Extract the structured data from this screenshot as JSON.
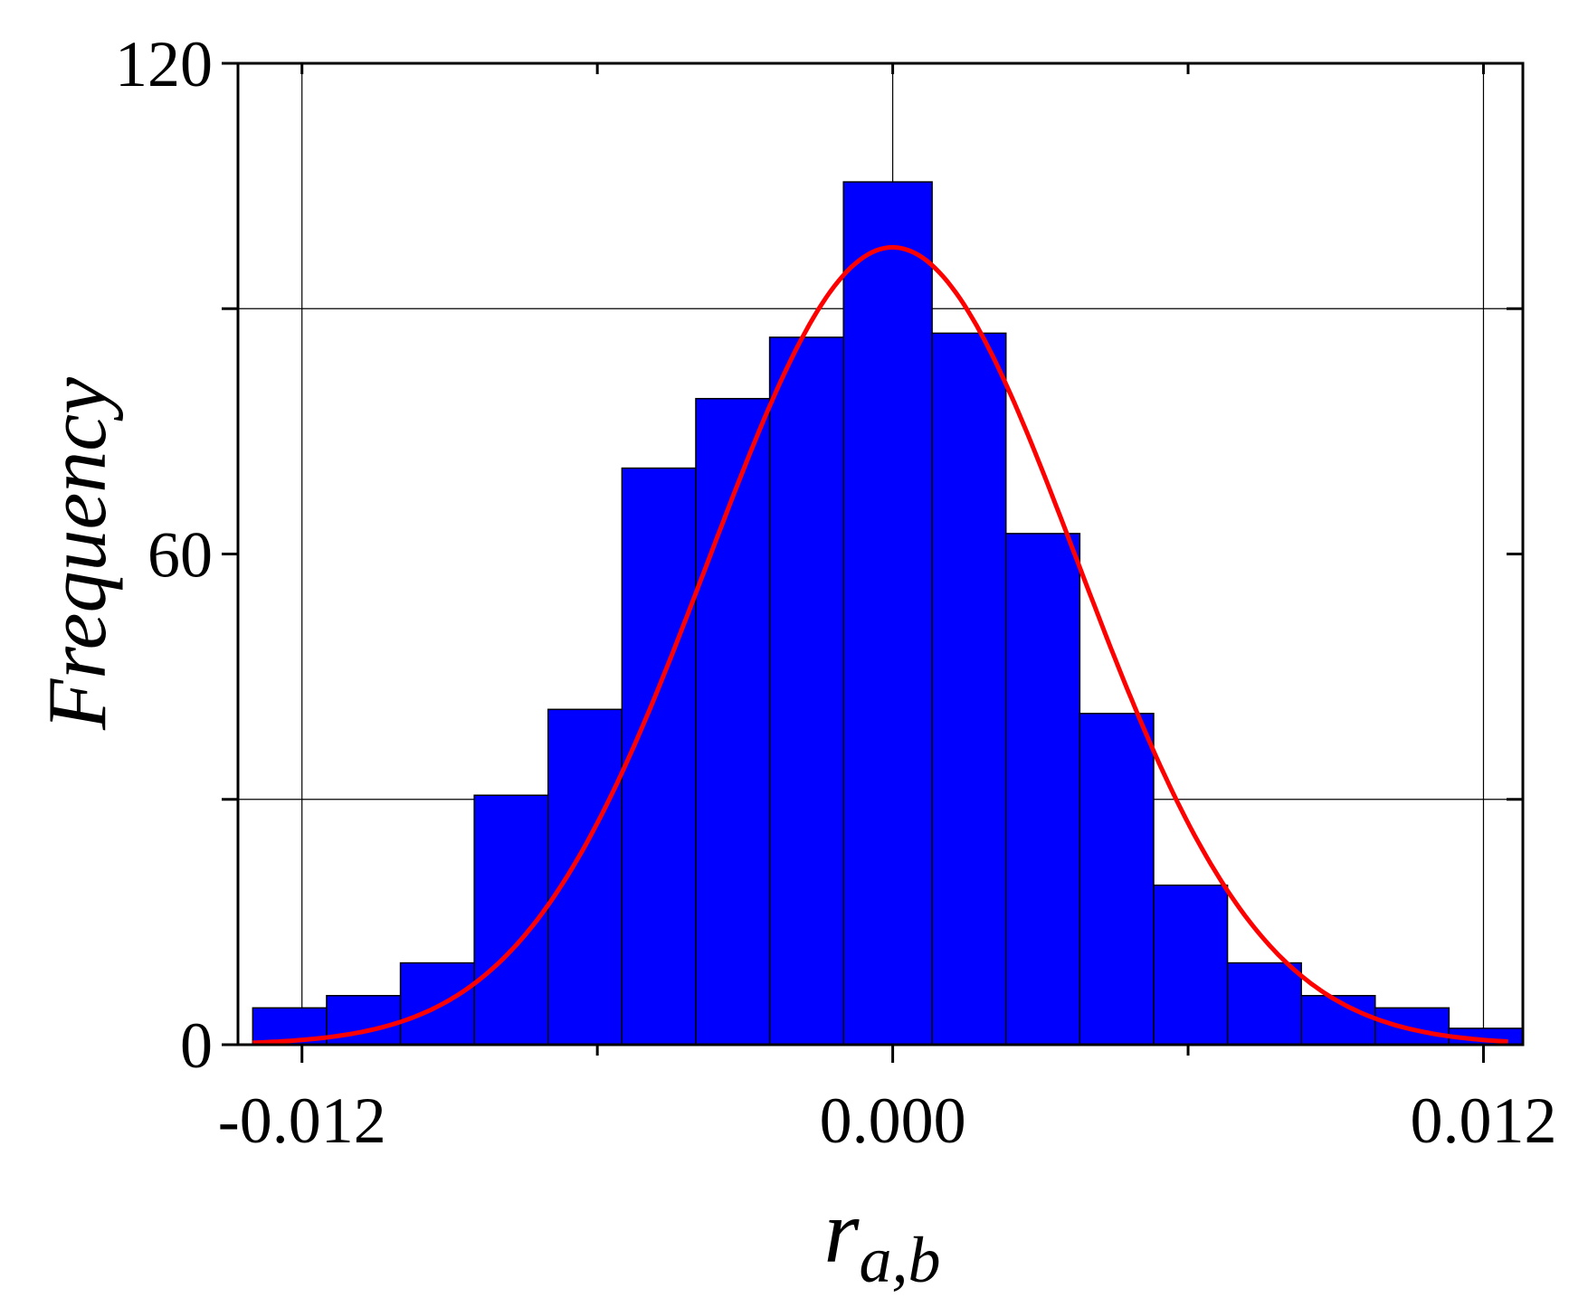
{
  "chart_data": {
    "type": "bar",
    "subtype": "histogram-with-fit",
    "title": "",
    "xlabel": {
      "main": "r",
      "subscript": "a,b"
    },
    "ylabel": "Frequency",
    "xlim": [
      -0.0133,
      0.0128
    ],
    "ylim": [
      0,
      120
    ],
    "xticks": [
      {
        "value": -0.012,
        "label": "-0.012"
      },
      {
        "value": 0.0,
        "label": "0.000"
      },
      {
        "value": 0.012,
        "label": "0.012"
      }
    ],
    "xminor": [
      -0.006,
      0.006
    ],
    "yticks": [
      {
        "value": 0,
        "label": "0"
      },
      {
        "value": 60,
        "label": "60"
      },
      {
        "value": 120,
        "label": "120"
      }
    ],
    "yminor": [
      30,
      90
    ],
    "grid": true,
    "bin_edges": [
      -0.013,
      -0.0115,
      -0.01,
      -0.0085,
      -0.007,
      -0.0055,
      -0.004,
      -0.0025,
      -0.001,
      0.0008,
      0.0023,
      0.0038,
      0.0053,
      0.0068,
      0.0083,
      0.0098,
      0.0113,
      0.0128
    ],
    "values": [
      4.5,
      6,
      10,
      30.5,
      41,
      70.5,
      79,
      86.5,
      105.5,
      87,
      62.5,
      40.5,
      19.5,
      10,
      6,
      4.5,
      2
    ],
    "fit_curve": {
      "type": "normal",
      "mean": 0.0,
      "peak": 97.5,
      "sigma": 0.00375
    },
    "colors": {
      "bars": "#0000ff",
      "bar_edge": "#000000",
      "fit": "#ff0000",
      "grid": "#000000"
    }
  }
}
